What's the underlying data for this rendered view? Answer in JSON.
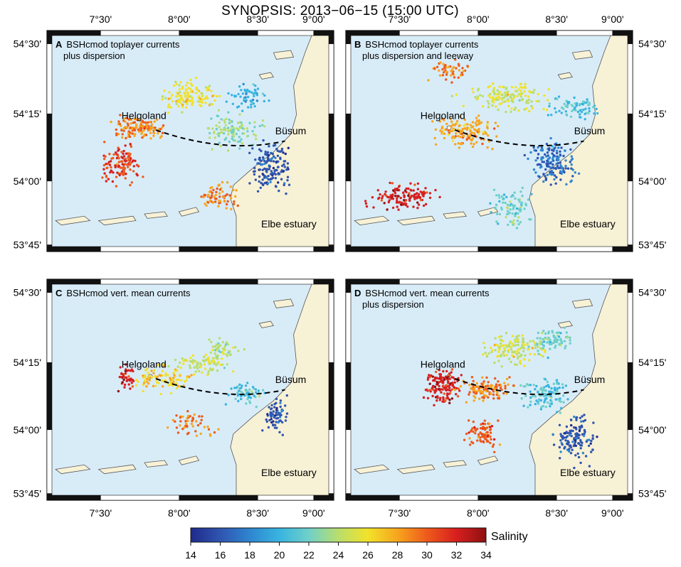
{
  "title": "SYNOPSIS: 2013−06−15 (15:00 UTC)",
  "lon_ticks": [
    "7°30'",
    "8°00'",
    "8°30'",
    "9°00'"
  ],
  "lat_ticks": [
    "54°30'",
    "54°15'",
    "54°00'",
    "53°45'"
  ],
  "panels": [
    {
      "letter": "A",
      "title_lines": [
        "BSHcmod toplayer currents",
        "plus dispersion"
      ]
    },
    {
      "letter": "B",
      "title_lines": [
        "BSHcmod toplayer currents",
        "plus dispersion and leeway"
      ]
    },
    {
      "letter": "C",
      "title_lines": [
        "BSHcmod vert. mean currents"
      ]
    },
    {
      "letter": "D",
      "title_lines": [
        "BSHcmod vert. mean currents",
        "plus dispersion"
      ]
    }
  ],
  "places": {
    "helgoland": "Helgoland",
    "busum": "Büsum",
    "elbe": "Elbe estuary"
  },
  "colorbar": {
    "label": "Salinity",
    "ticks": [
      "14",
      "16",
      "18",
      "20",
      "22",
      "24",
      "26",
      "28",
      "30",
      "32",
      "34"
    ],
    "colors": [
      "#1f2a8c",
      "#2f55b0",
      "#2e86cf",
      "#38b4e0",
      "#6fd0c8",
      "#b9de6c",
      "#f2e22a",
      "#f7a51e",
      "#ee5a1b",
      "#d71f1f",
      "#8e1010"
    ]
  },
  "colors": {
    "sea": "#d8ecf8",
    "land": "#f7f1d6",
    "frame": "#111111"
  }
}
